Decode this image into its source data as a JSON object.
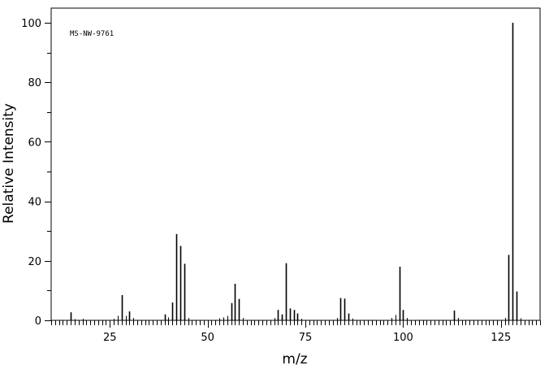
{
  "chart_data": {
    "type": "bar",
    "title": "",
    "annotation": "MS-NW-9761",
    "xlabel": "m/z",
    "ylabel": "Relative Intensity",
    "xlim": [
      10,
      135
    ],
    "ylim": [
      0,
      100
    ],
    "x_ticks": [
      25,
      50,
      75,
      100,
      125
    ],
    "y_ticks": [
      0,
      20,
      40,
      60,
      80,
      100
    ],
    "grid": false,
    "series": [
      {
        "x": [
          15,
          16,
          18,
          26,
          27,
          28,
          29,
          30,
          31,
          39,
          40,
          41,
          42,
          43,
          44,
          45,
          53,
          54,
          55,
          56,
          57,
          58,
          59,
          67,
          68,
          69,
          70,
          71,
          72,
          73,
          74,
          83,
          84,
          85,
          86,
          87,
          97,
          98,
          99,
          100,
          101,
          113,
          114,
          126,
          127,
          128,
          129,
          130
        ],
        "values": [
          2.7,
          0.4,
          0.5,
          0.5,
          1.5,
          8.5,
          1.5,
          3.0,
          0.8,
          2.0,
          1.0,
          6.0,
          29.0,
          25.0,
          19.0,
          0.8,
          0.7,
          1.0,
          1.5,
          5.8,
          12.3,
          7.2,
          0.8,
          0.8,
          3.5,
          2.0,
          19.2,
          4.0,
          3.5,
          2.3,
          0.5,
          0.8,
          7.5,
          7.3,
          2.3,
          0.6,
          0.8,
          1.8,
          18.0,
          3.5,
          0.8,
          3.3,
          0.8,
          0.8,
          22.0,
          100.0,
          9.7,
          0.7
        ]
      }
    ]
  }
}
